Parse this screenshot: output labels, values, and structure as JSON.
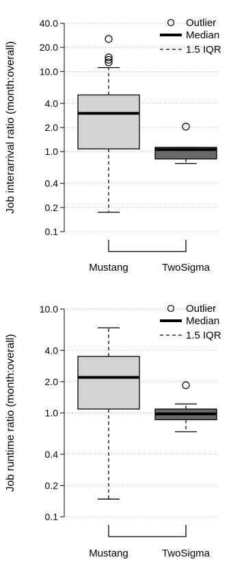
{
  "chart_data": [
    {
      "type": "box",
      "ylabel": "Job interarrival ratio (month:overall)",
      "yscale": "log",
      "ylim": [
        0.1,
        40
      ],
      "yticks": [
        {
          "value": 0.1,
          "label": "0.1"
        },
        {
          "value": 0.2,
          "label": "0.2"
        },
        {
          "value": 0.4,
          "label": "0.4"
        },
        {
          "value": 1.0,
          "label": "1.0"
        },
        {
          "value": 2.0,
          "label": "2.0"
        },
        {
          "value": 4.0,
          "label": "4.0"
        },
        {
          "value": 10.0,
          "label": "10.0"
        },
        {
          "value": 20.0,
          "label": "20.0"
        },
        {
          "value": 40.0,
          "label": "40.0"
        }
      ],
      "grid": "horizontal-dotted",
      "legend": {
        "position": "top-right",
        "items": [
          {
            "key": "outlier",
            "label": "Outlier"
          },
          {
            "key": "median",
            "label": "Median"
          },
          {
            "key": "iqr",
            "label": "1.5 IQR"
          }
        ]
      },
      "categories": [
        "Mustang",
        "TwoSigma"
      ],
      "boxes": [
        {
          "name": "Mustang",
          "whisker_low": 0.175,
          "q1": 1.08,
          "median": 3.0,
          "q3": 5.1,
          "whisker_high": 11.2,
          "outliers": [
            13.0,
            14.0,
            15.0,
            25.5
          ],
          "fill": "#d3d3d3"
        },
        {
          "name": "TwoSigma",
          "whisker_low": 0.71,
          "q1": 0.81,
          "median": 1.06,
          "q3": 1.13,
          "whisker_high": 1.13,
          "outliers": [
            2.05
          ],
          "fill": "#696969"
        }
      ]
    },
    {
      "type": "box",
      "ylabel": "Job runtime ratio (month:overall)",
      "yscale": "log",
      "ylim": [
        0.1,
        10
      ],
      "yticks": [
        {
          "value": 0.1,
          "label": "0.1"
        },
        {
          "value": 0.2,
          "label": "0.2"
        },
        {
          "value": 0.4,
          "label": "0.4"
        },
        {
          "value": 1.0,
          "label": "1.0"
        },
        {
          "value": 2.0,
          "label": "2.0"
        },
        {
          "value": 4.0,
          "label": "4.0"
        },
        {
          "value": 10.0,
          "label": "10.0"
        }
      ],
      "grid": "horizontal-dotted",
      "legend": {
        "position": "top-right",
        "items": [
          {
            "key": "outlier",
            "label": "Outlier"
          },
          {
            "key": "median",
            "label": "Median"
          },
          {
            "key": "iqr",
            "label": "1.5 IQR"
          }
        ]
      },
      "categories": [
        "Mustang",
        "TwoSigma"
      ],
      "boxes": [
        {
          "name": "Mustang",
          "whisker_low": 0.148,
          "q1": 1.09,
          "median": 2.2,
          "q3": 3.5,
          "whisker_high": 6.6,
          "outliers": [],
          "fill": "#d3d3d3"
        },
        {
          "name": "TwoSigma",
          "whisker_low": 0.66,
          "q1": 0.86,
          "median": 0.98,
          "q3": 1.09,
          "whisker_high": 1.22,
          "outliers": [
            1.85
          ],
          "fill": "#696969"
        }
      ]
    }
  ]
}
